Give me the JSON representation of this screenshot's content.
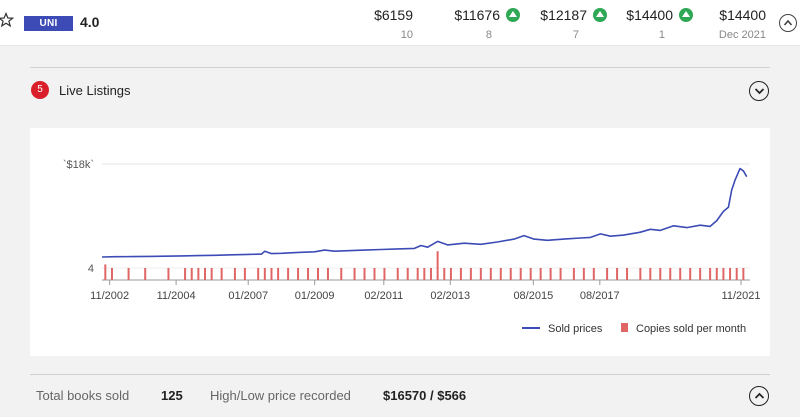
{
  "header": {
    "grade_badge": "UNI",
    "grade_value": "4.0",
    "price_columns": [
      {
        "price": "$6159",
        "count": "10",
        "trend": "none"
      },
      {
        "price": "$11676",
        "count": "8",
        "trend": "up"
      },
      {
        "price": "$12187",
        "count": "7",
        "trend": "up"
      },
      {
        "price": "$14400",
        "count": "1",
        "trend": "up"
      },
      {
        "price": "$14400",
        "count": "Dec 2021",
        "trend": "none"
      }
    ],
    "icons": {
      "star": "star-outline-icon",
      "collapse": "chevron-up-circle-icon",
      "trend": "arrow-up-circle-icon"
    },
    "accent_color": "#3c4bb6",
    "up_color": "#2fa855"
  },
  "listings": {
    "count": "5",
    "label": "Live Listings",
    "badge_color": "#d9202a",
    "toggle_icon": "chevron-down-circle-icon"
  },
  "chart_data": {
    "type": "line",
    "ytick_labels": [
      "`$18k`",
      "4"
    ],
    "x_tick_labels": [
      "11/2002",
      "11/2004",
      "01/2007",
      "01/2009",
      "02/2011",
      "02/2013",
      "08/2015",
      "08/2017",
      "11/2021"
    ],
    "x_tick_years": [
      2002.83,
      2004.83,
      2007.0,
      2009.0,
      2011.08,
      2013.08,
      2015.58,
      2017.58,
      2021.83
    ],
    "xlim": [
      2002.6,
      2022.1
    ],
    "price_ylim": [
      0,
      18000
    ],
    "count_ylim": [
      0,
      4
    ],
    "series": [
      {
        "name": "Sold prices",
        "kind": "line",
        "color": "#3c4bb6",
        "points": [
          [
            2002.6,
            1900
          ],
          [
            2003.0,
            1950
          ],
          [
            2003.5,
            1980
          ],
          [
            2004.0,
            2000
          ],
          [
            2004.5,
            2050
          ],
          [
            2005.0,
            2100
          ],
          [
            2005.5,
            2150
          ],
          [
            2006.0,
            2200
          ],
          [
            2006.5,
            2280
          ],
          [
            2007.0,
            2350
          ],
          [
            2007.4,
            2400
          ],
          [
            2007.5,
            2900
          ],
          [
            2007.7,
            2500
          ],
          [
            2008.0,
            2550
          ],
          [
            2008.5,
            2700
          ],
          [
            2009.0,
            2800
          ],
          [
            2009.3,
            3100
          ],
          [
            2009.6,
            2900
          ],
          [
            2010.0,
            3000
          ],
          [
            2010.5,
            3100
          ],
          [
            2011.0,
            3200
          ],
          [
            2011.5,
            3300
          ],
          [
            2012.0,
            3400
          ],
          [
            2012.2,
            3900
          ],
          [
            2012.4,
            3600
          ],
          [
            2012.7,
            4600
          ],
          [
            2013.0,
            4000
          ],
          [
            2013.5,
            4300
          ],
          [
            2014.0,
            4100
          ],
          [
            2014.5,
            4500
          ],
          [
            2015.0,
            5000
          ],
          [
            2015.3,
            5600
          ],
          [
            2015.6,
            5000
          ],
          [
            2016.0,
            4800
          ],
          [
            2016.5,
            5000
          ],
          [
            2017.0,
            5200
          ],
          [
            2017.3,
            5300
          ],
          [
            2017.6,
            5900
          ],
          [
            2017.9,
            5500
          ],
          [
            2018.3,
            5700
          ],
          [
            2018.8,
            6200
          ],
          [
            2019.1,
            6700
          ],
          [
            2019.4,
            6500
          ],
          [
            2019.8,
            7300
          ],
          [
            2020.2,
            7000
          ],
          [
            2020.6,
            7400
          ],
          [
            2020.9,
            7200
          ],
          [
            2021.1,
            8200
          ],
          [
            2021.3,
            9800
          ],
          [
            2021.45,
            10500
          ],
          [
            2021.55,
            13500
          ],
          [
            2021.65,
            15200
          ],
          [
            2021.8,
            17200
          ],
          [
            2021.9,
            16800
          ],
          [
            2022.0,
            15800
          ]
        ]
      },
      {
        "name": "Copies sold per month",
        "kind": "bar",
        "color": "#e06666",
        "points": [
          [
            2002.7,
            1.3
          ],
          [
            2002.9,
            1
          ],
          [
            2003.4,
            1
          ],
          [
            2003.9,
            1
          ],
          [
            2004.6,
            1
          ],
          [
            2005.1,
            1
          ],
          [
            2005.3,
            1
          ],
          [
            2005.5,
            1
          ],
          [
            2005.7,
            1
          ],
          [
            2005.9,
            1
          ],
          [
            2006.2,
            1
          ],
          [
            2006.6,
            1
          ],
          [
            2006.9,
            1
          ],
          [
            2007.3,
            1
          ],
          [
            2007.5,
            1
          ],
          [
            2007.7,
            1
          ],
          [
            2007.9,
            1
          ],
          [
            2008.2,
            1
          ],
          [
            2008.5,
            1
          ],
          [
            2008.8,
            1
          ],
          [
            2009.1,
            1
          ],
          [
            2009.4,
            1
          ],
          [
            2009.8,
            1
          ],
          [
            2010.2,
            1
          ],
          [
            2010.5,
            1
          ],
          [
            2010.8,
            1
          ],
          [
            2011.1,
            1
          ],
          [
            2011.5,
            1
          ],
          [
            2011.8,
            1
          ],
          [
            2012.1,
            1
          ],
          [
            2012.3,
            1
          ],
          [
            2012.5,
            1
          ],
          [
            2012.7,
            2.4
          ],
          [
            2012.9,
            1
          ],
          [
            2013.1,
            1
          ],
          [
            2013.4,
            1
          ],
          [
            2013.7,
            1
          ],
          [
            2014.0,
            1
          ],
          [
            2014.3,
            1
          ],
          [
            2014.6,
            1
          ],
          [
            2014.9,
            1
          ],
          [
            2015.2,
            1
          ],
          [
            2015.5,
            1
          ],
          [
            2015.8,
            1
          ],
          [
            2016.1,
            1
          ],
          [
            2016.4,
            1
          ],
          [
            2016.8,
            1
          ],
          [
            2017.1,
            1
          ],
          [
            2017.4,
            1
          ],
          [
            2017.8,
            1
          ],
          [
            2018.1,
            1
          ],
          [
            2018.4,
            1
          ],
          [
            2018.8,
            1
          ],
          [
            2019.1,
            1
          ],
          [
            2019.4,
            1
          ],
          [
            2019.7,
            1
          ],
          [
            2020.0,
            1
          ],
          [
            2020.3,
            1
          ],
          [
            2020.6,
            1
          ],
          [
            2020.9,
            1
          ],
          [
            2021.1,
            1
          ],
          [
            2021.3,
            1
          ],
          [
            2021.5,
            1
          ],
          [
            2021.7,
            1
          ],
          [
            2021.9,
            1
          ]
        ]
      }
    ],
    "legend_position": "bottom-right",
    "grid": true
  },
  "footer": {
    "total_label": "Total books sold",
    "total_value": "125",
    "highlow_label": "High/Low price recorded",
    "highlow_value": "$16570 / $566",
    "toggle_icon": "chevron-up-circle-icon"
  }
}
